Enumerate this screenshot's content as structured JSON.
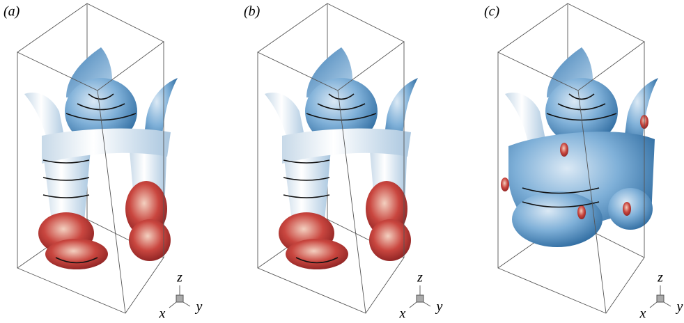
{
  "panels": [
    {
      "label": "(a)",
      "axes": {
        "z": "z",
        "x": "x",
        "y": "y"
      }
    },
    {
      "label": "(b)",
      "axes": {
        "z": "z",
        "x": "x",
        "y": "y"
      }
    },
    {
      "label": "(c)",
      "axes": {
        "z": "z",
        "x": "x",
        "y": "y"
      }
    }
  ]
}
